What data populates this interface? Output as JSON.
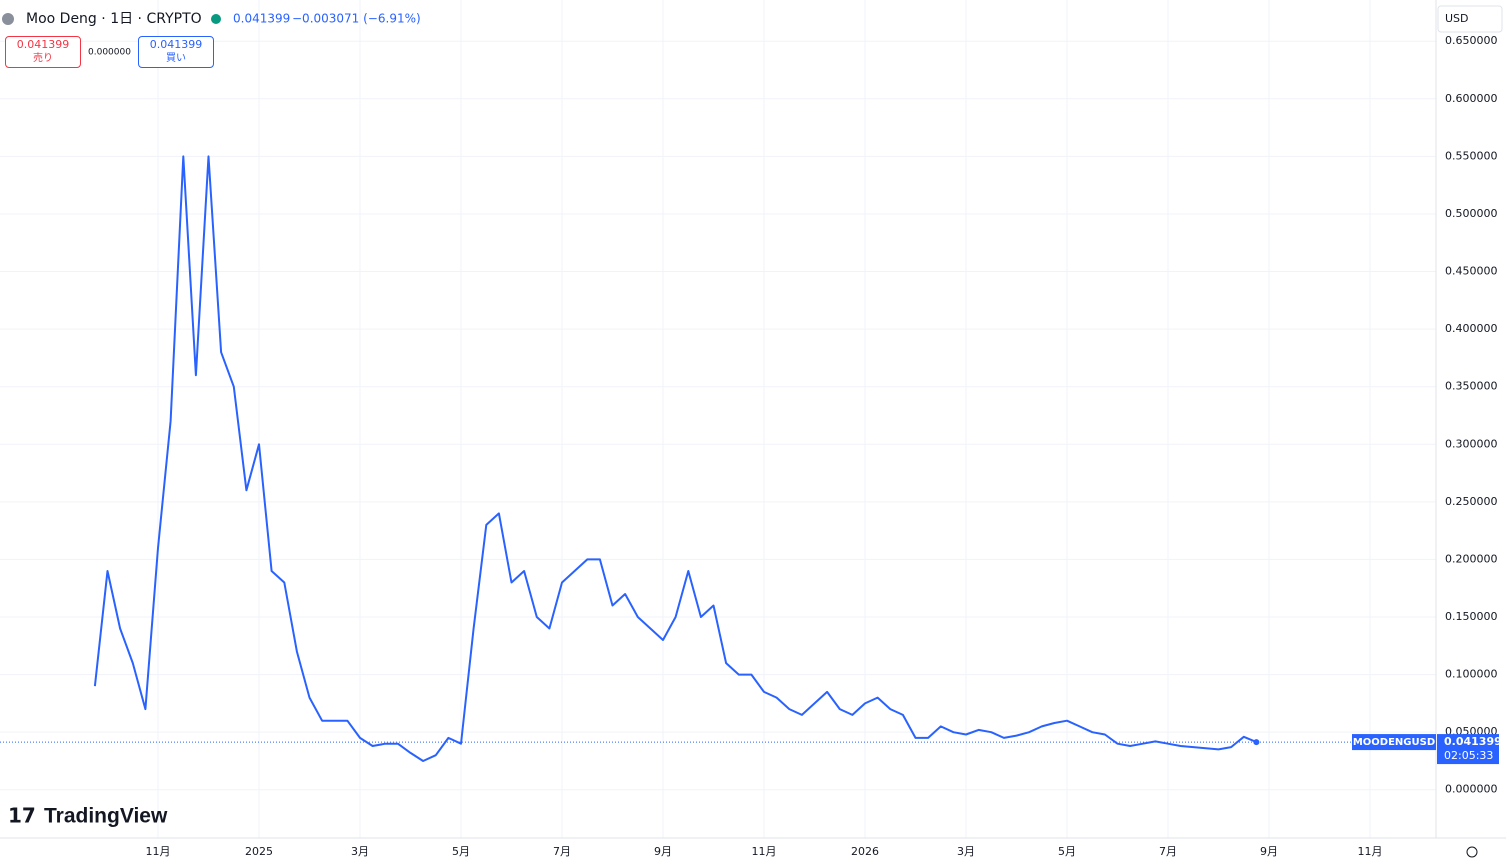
{
  "header": {
    "symbol": "Moo Deng",
    "interval": "1日",
    "exchange": "CRYPTO",
    "last": "0.041399",
    "change": "−0.003071 (−6.91%)",
    "sell": {
      "price": "0.041399",
      "label": "売り"
    },
    "spread": "0.000000",
    "buy": {
      "price": "0.041399",
      "label": "買い"
    },
    "currency": "USD",
    "logo": "TradingView"
  },
  "price_tag": {
    "symbol": "MOODENGUSD",
    "price": "0.041399",
    "countdown": "02:05:33"
  },
  "chart_data": {
    "type": "line",
    "categories": [
      null,
      null,
      null,
      null,
      null,
      null,
      null,
      null,
      null,
      null,
      null,
      null,
      "11月",
      null,
      null,
      null,
      null,
      null,
      null,
      null,
      "2025",
      null,
      null,
      null,
      null,
      null,
      null,
      null,
      "3月",
      null,
      null,
      null,
      null,
      null,
      null,
      null,
      "5月",
      null,
      null,
      null,
      null,
      null,
      null,
      null,
      "7月",
      null,
      null,
      null,
      null,
      null,
      null,
      null,
      "9月",
      null,
      null,
      null,
      null,
      null,
      null,
      null,
      "11月",
      null,
      null,
      null,
      null,
      null,
      null,
      null,
      "2026",
      null,
      null,
      null,
      null,
      null,
      null,
      null,
      "3月",
      null,
      null,
      null,
      null,
      null,
      null,
      null,
      "5月",
      null,
      null,
      null,
      null,
      null,
      null,
      null,
      "7月",
      null,
      null,
      null,
      null,
      null,
      null,
      null,
      "9月",
      null,
      null,
      null,
      null,
      null,
      null,
      null,
      "11月",
      null,
      null,
      null,
      null,
      null
    ],
    "series": [
      {
        "name": "MOODENGUSD",
        "color": "#2962ff",
        "values": [
          null,
          null,
          null,
          null,
          null,
          null,
          null,
          0.09,
          0.19,
          0.14,
          0.11,
          0.07,
          0.21,
          0.32,
          0.55,
          0.36,
          0.55,
          0.38,
          0.35,
          0.26,
          0.3,
          0.19,
          0.18,
          0.12,
          0.08,
          0.06,
          0.06,
          0.06,
          0.045,
          0.038,
          0.04,
          0.04,
          0.032,
          0.025,
          0.03,
          0.045,
          0.04,
          0.14,
          0.23,
          0.24,
          0.18,
          0.19,
          0.15,
          0.14,
          0.18,
          0.19,
          0.2,
          0.2,
          0.16,
          0.17,
          0.15,
          0.14,
          0.13,
          0.15,
          0.19,
          0.15,
          0.16,
          0.11,
          0.1,
          0.1,
          0.085,
          0.08,
          0.07,
          0.065,
          0.075,
          0.085,
          0.07,
          0.065,
          0.075,
          0.08,
          0.07,
          0.065,
          0.045,
          0.045,
          0.055,
          0.05,
          0.048,
          0.052,
          0.05,
          0.045,
          0.047,
          0.05,
          0.055,
          0.058,
          0.06,
          0.055,
          0.05,
          0.048,
          0.04,
          0.038,
          0.04,
          0.042,
          0.04,
          0.038,
          0.037,
          0.036,
          0.035,
          0.037,
          0.046,
          0.041399,
          null,
          null,
          null,
          null,
          null,
          null,
          null,
          null,
          null,
          null,
          null,
          null,
          null,
          null
        ]
      }
    ],
    "ylim": [
      -0.0419,
      0.6858
    ],
    "yticks": [
      {
        "value": 0,
        "label": "0.000000"
      },
      {
        "value": 0.05,
        "label": "0.050000"
      },
      {
        "value": 0.1,
        "label": "0.100000"
      },
      {
        "value": 0.15,
        "label": "0.150000"
      },
      {
        "value": 0.2,
        "label": "0.200000"
      },
      {
        "value": 0.25,
        "label": "0.250000"
      },
      {
        "value": 0.3,
        "label": "0.300000"
      },
      {
        "value": 0.35,
        "label": "0.350000"
      },
      {
        "value": 0.4,
        "label": "0.400000"
      },
      {
        "value": 0.45,
        "label": "0.450000"
      },
      {
        "value": 0.5,
        "label": "0.500000"
      },
      {
        "value": 0.55,
        "label": "0.550000"
      },
      {
        "value": 0.6,
        "label": "0.600000"
      },
      {
        "value": 0.65,
        "label": "0.650000"
      }
    ],
    "grid": true
  }
}
